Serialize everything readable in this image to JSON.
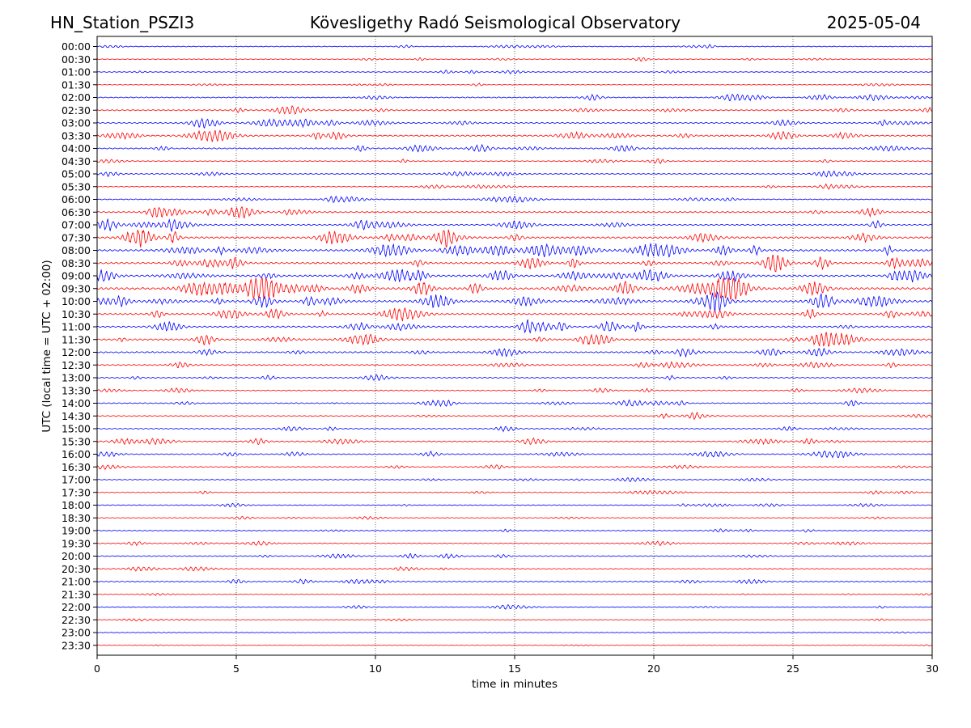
{
  "chart_data": {
    "type": "line",
    "title_left": "HN_Station_PSZI3",
    "title_center": "Kövesligethy Radó Seismological Observatory",
    "title_right": "2025-05-04",
    "xlabel": "time in minutes",
    "ylabel": "UTC (local time = UTC + 02:00)",
    "xlim": [
      0,
      30
    ],
    "x_ticks": [
      "0",
      "5",
      "10",
      "15",
      "20",
      "25",
      "30"
    ],
    "x_tick_values": [
      0,
      5,
      10,
      15,
      20,
      25,
      30
    ],
    "vertical_gridlines_at": [
      5,
      10,
      15,
      20,
      25
    ],
    "row_labels": [
      "00:00",
      "00:30",
      "01:00",
      "01:30",
      "02:00",
      "02:30",
      "03:00",
      "03:30",
      "04:00",
      "04:30",
      "05:00",
      "05:30",
      "06:00",
      "06:30",
      "07:00",
      "07:30",
      "08:00",
      "08:30",
      "09:00",
      "09:30",
      "10:00",
      "10:30",
      "11:00",
      "11:30",
      "12:00",
      "12:30",
      "13:00",
      "13:30",
      "14:00",
      "14:30",
      "15:00",
      "15:30",
      "16:00",
      "16:30",
      "17:00",
      "17:30",
      "18:00",
      "18:30",
      "19:00",
      "19:30",
      "20:00",
      "20:30",
      "21:00",
      "21:30",
      "22:00",
      "22:30",
      "23:00",
      "23:30"
    ],
    "series_colors": [
      "#0000ff",
      "#ff0000"
    ],
    "trace_activity": [
      0.25,
      0.25,
      0.22,
      0.2,
      0.4,
      0.45,
      0.55,
      0.55,
      0.5,
      0.3,
      0.3,
      0.25,
      0.35,
      0.55,
      0.6,
      0.75,
      0.85,
      0.8,
      0.85,
      1.0,
      0.9,
      0.65,
      0.7,
      0.7,
      0.6,
      0.4,
      0.35,
      0.35,
      0.4,
      0.3,
      0.35,
      0.4,
      0.4,
      0.3,
      0.25,
      0.25,
      0.25,
      0.2,
      0.22,
      0.3,
      0.35,
      0.3,
      0.3,
      0.15,
      0.2,
      0.15,
      0.08,
      0.08
    ]
  }
}
